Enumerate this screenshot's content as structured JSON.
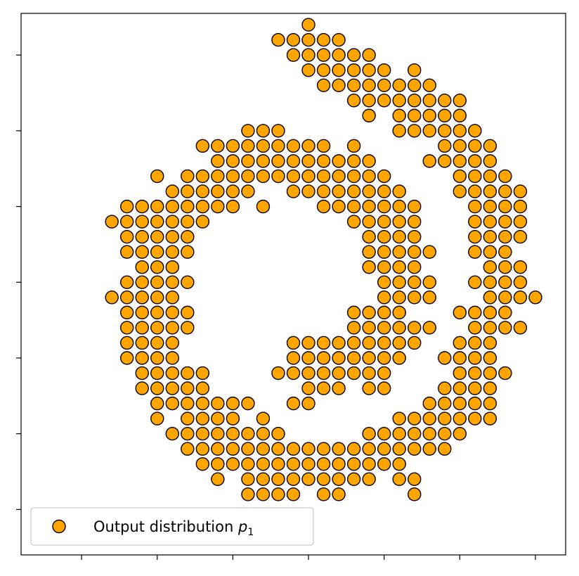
{
  "chart_data": {
    "type": "scatter",
    "title": "",
    "xlabel": "",
    "ylabel": "",
    "xlim": [
      -3.8,
      3.4
    ],
    "ylim": [
      -3.6,
      3.55
    ],
    "tick_labels_visible": false,
    "grid": false,
    "legend": {
      "placement": "lower-left",
      "entries": [
        {
          "label": "Output distribution",
          "subscript_symbol": "p",
          "subscript": "1"
        }
      ]
    },
    "series": [
      {
        "name": "Output distribution p1",
        "color": "#FFA500",
        "edgecolor": "#000000",
        "rows": [
          {
            "y": 3.4,
            "x": [
              0.0
            ]
          },
          {
            "y": 3.2,
            "x": [
              -0.4,
              -0.2,
              0.0,
              0.2,
              0.4
            ]
          },
          {
            "y": 3.0,
            "x": [
              -0.2,
              0.0,
              0.2,
              0.4,
              0.6,
              0.8
            ]
          },
          {
            "y": 2.8,
            "x": [
              0.0,
              0.2,
              0.4,
              0.6,
              0.8,
              1.0,
              1.4
            ]
          },
          {
            "y": 2.6,
            "x": [
              0.2,
              0.4,
              0.6,
              0.8,
              1.0,
              1.2,
              1.4,
              1.6
            ]
          },
          {
            "y": 2.4,
            "x": [
              0.6,
              0.8,
              1.0,
              1.2,
              1.4,
              1.6,
              1.8,
              2.0
            ]
          },
          {
            "y": 2.2,
            "x": [
              0.8,
              1.2,
              1.4,
              1.6,
              1.8,
              2.0
            ]
          },
          {
            "y": 2.0,
            "x": [
              -0.8,
              -0.6,
              -0.4,
              1.2,
              1.4,
              1.6,
              1.8,
              2.0,
              2.2
            ]
          },
          {
            "y": 1.8,
            "x": [
              -1.4,
              -1.2,
              -1.0,
              -0.8,
              -0.6,
              -0.4,
              -0.2,
              0.0,
              0.2,
              0.6,
              1.8,
              2.0,
              2.2,
              2.4
            ]
          },
          {
            "y": 1.6,
            "x": [
              -1.2,
              -1.0,
              -0.8,
              -0.6,
              -0.4,
              -0.2,
              0.0,
              0.2,
              0.4,
              0.6,
              0.8,
              1.6,
              1.8,
              2.0,
              2.2,
              2.4
            ]
          },
          {
            "y": 1.4,
            "x": [
              -2.0,
              -1.6,
              -1.4,
              -1.2,
              -1.0,
              -0.8,
              -0.6,
              -0.4,
              -0.2,
              0.0,
              0.2,
              0.4,
              0.6,
              0.8,
              1.0,
              2.0,
              2.2,
              2.4,
              2.6
            ]
          },
          {
            "y": 1.2,
            "x": [
              -1.8,
              -1.6,
              -1.4,
              -1.2,
              -1.0,
              -0.8,
              -0.2,
              0.0,
              0.2,
              0.4,
              0.6,
              0.8,
              1.0,
              1.2,
              2.0,
              2.2,
              2.4,
              2.6,
              2.8
            ]
          },
          {
            "y": 1.0,
            "x": [
              -2.4,
              -2.2,
              -2.0,
              -1.8,
              -1.6,
              -1.4,
              -1.2,
              -1.0,
              -0.6,
              0.2,
              0.4,
              0.6,
              0.8,
              1.0,
              1.2,
              1.4,
              2.2,
              2.4,
              2.6,
              2.8
            ]
          },
          {
            "y": 0.8,
            "x": [
              -2.6,
              -2.4,
              -2.2,
              -2.0,
              -1.8,
              -1.6,
              -1.4,
              0.6,
              0.8,
              1.0,
              1.2,
              1.4,
              2.2,
              2.4,
              2.6,
              2.8
            ]
          },
          {
            "y": 0.6,
            "x": [
              -2.4,
              -2.2,
              -2.0,
              -1.8,
              -1.6,
              0.8,
              1.0,
              1.2,
              1.4,
              2.2,
              2.4,
              2.6,
              2.8
            ]
          },
          {
            "y": 0.4,
            "x": [
              -2.4,
              -2.2,
              -2.0,
              -1.8,
              -1.6,
              0.8,
              1.0,
              1.2,
              1.4,
              1.6,
              2.2,
              2.4,
              2.6
            ]
          },
          {
            "y": 0.2,
            "x": [
              -2.2,
              -2.0,
              -1.8,
              0.8,
              1.0,
              1.2,
              1.4,
              2.4,
              2.6,
              2.8
            ]
          },
          {
            "y": 0.0,
            "x": [
              -2.4,
              -2.2,
              -2.0,
              -1.8,
              -1.6,
              1.0,
              1.2,
              1.4,
              1.6,
              2.2,
              2.4,
              2.6,
              2.8
            ]
          },
          {
            "y": -0.2,
            "x": [
              -2.6,
              -2.4,
              -2.2,
              -2.0,
              -1.8,
              1.0,
              1.2,
              1.4,
              1.6,
              2.4,
              2.6,
              2.8,
              3.0
            ]
          },
          {
            "y": -0.4,
            "x": [
              -2.4,
              -2.2,
              -2.0,
              -1.8,
              -1.6,
              0.6,
              0.8,
              1.0,
              1.2,
              2.0,
              2.2,
              2.4,
              2.6
            ]
          },
          {
            "y": -0.6,
            "x": [
              -2.4,
              -2.2,
              -2.0,
              -1.8,
              -1.6,
              0.6,
              0.8,
              1.0,
              1.2,
              1.4,
              1.6,
              2.2,
              2.4,
              2.6,
              2.8
            ]
          },
          {
            "y": -0.8,
            "x": [
              -2.4,
              -2.2,
              -2.0,
              -1.8,
              -0.2,
              0.0,
              0.2,
              0.4,
              0.6,
              0.8,
              1.0,
              1.2,
              1.4,
              2.0,
              2.2,
              2.4
            ]
          },
          {
            "y": -1.0,
            "x": [
              -2.4,
              -2.2,
              -2.0,
              -1.8,
              -0.2,
              0.0,
              0.2,
              0.4,
              0.6,
              0.8,
              1.0,
              1.2,
              1.8,
              2.0,
              2.2,
              2.4
            ]
          },
          {
            "y": -1.2,
            "x": [
              -2.2,
              -2.0,
              -1.8,
              -1.6,
              -1.4,
              -0.4,
              -0.2,
              0.0,
              0.2,
              0.4,
              0.6,
              0.8,
              1.0,
              2.0,
              2.2,
              2.4,
              2.6
            ]
          },
          {
            "y": -1.4,
            "x": [
              -2.2,
              -2.0,
              -1.8,
              -1.6,
              -1.4,
              0.0,
              0.2,
              0.4,
              0.8,
              1.0,
              1.8,
              2.0,
              2.2,
              2.4
            ]
          },
          {
            "y": -1.6,
            "x": [
              -2.0,
              -1.8,
              -1.6,
              -1.4,
              -1.2,
              -1.0,
              -0.8,
              -0.2,
              0.0,
              1.6,
              1.8,
              2.0,
              2.2,
              2.4
            ]
          },
          {
            "y": -1.8,
            "x": [
              -2.0,
              -1.6,
              -1.4,
              -1.2,
              -1.0,
              -0.6,
              1.2,
              1.4,
              1.6,
              1.8,
              2.0,
              2.2,
              2.4
            ]
          },
          {
            "y": -2.0,
            "x": [
              -1.8,
              -1.6,
              -1.4,
              -1.2,
              -1.0,
              -0.8,
              -0.6,
              -0.4,
              0.8,
              1.0,
              1.2,
              1.4,
              1.6,
              1.8,
              2.0
            ]
          },
          {
            "y": -2.2,
            "x": [
              -1.6,
              -1.4,
              -1.2,
              -1.0,
              -0.8,
              -0.6,
              -0.4,
              -0.2,
              0.0,
              0.2,
              0.4,
              0.6,
              0.8,
              1.0,
              1.2,
              1.4,
              1.6,
              1.8
            ]
          },
          {
            "y": -2.4,
            "x": [
              -1.4,
              -1.2,
              -1.0,
              -0.8,
              -0.6,
              -0.4,
              -0.2,
              0.0,
              0.2,
              0.4,
              0.6,
              0.8,
              1.0,
              1.2
            ]
          },
          {
            "y": -2.6,
            "x": [
              -1.2,
              -0.8,
              -0.6,
              -0.4,
              -0.2,
              0.0,
              0.2,
              0.4,
              0.6,
              0.8,
              1.2,
              1.4
            ]
          },
          {
            "y": -2.8,
            "x": [
              -0.8,
              -0.6,
              -0.4,
              -0.2,
              0.2,
              0.4,
              1.4
            ]
          }
        ]
      }
    ]
  }
}
